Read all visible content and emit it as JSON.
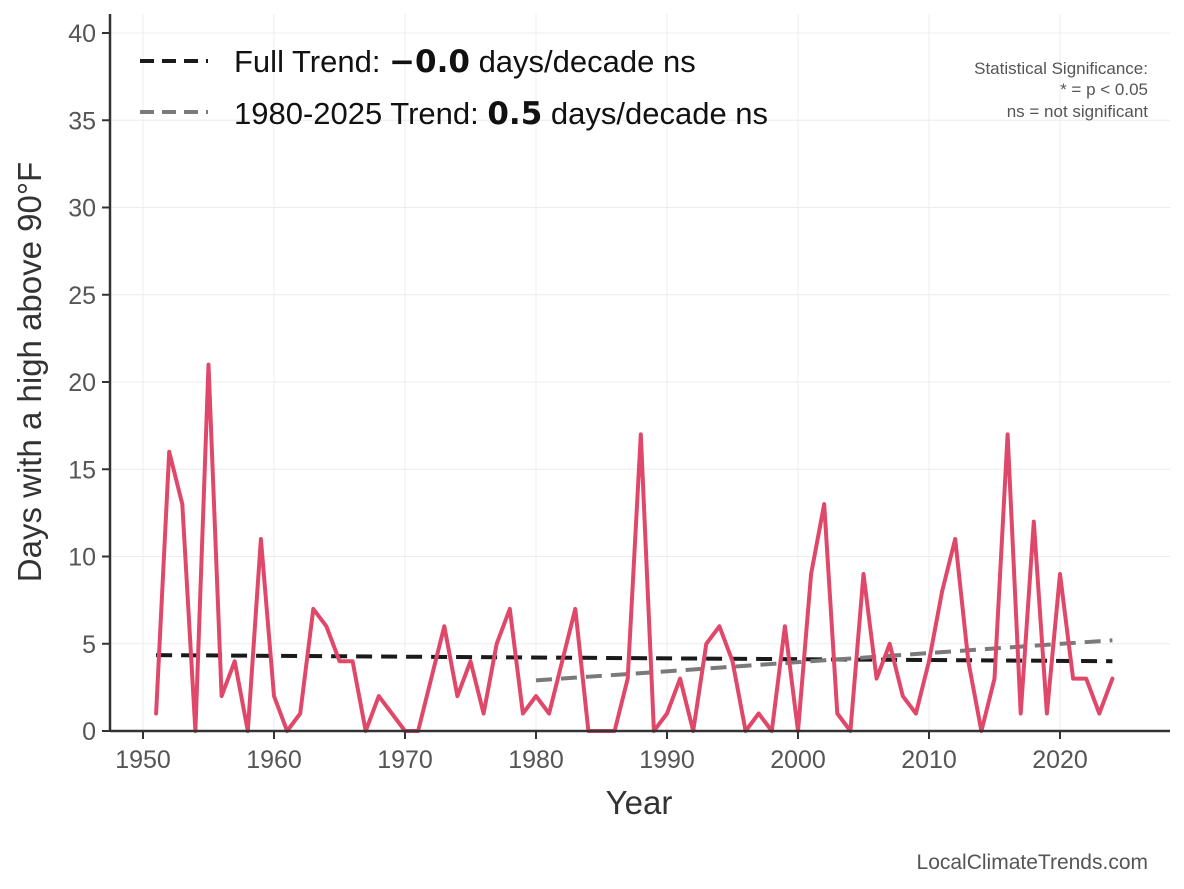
{
  "chart_data": {
    "type": "line",
    "xlabel": "Year",
    "ylabel": "Days with a high above 90°F",
    "xlim": [
      1946,
      2028
    ],
    "ylim": [
      0,
      41
    ],
    "xticks": [
      1950,
      1960,
      1970,
      1980,
      1990,
      2000,
      2010,
      2020
    ],
    "yticks": [
      0,
      5,
      10,
      15,
      20,
      25,
      30,
      35,
      40
    ],
    "grid": true,
    "legend_position": "top-left",
    "series": [
      {
        "color": "#e0486a",
        "x": [
          1951,
          1952,
          1953,
          1954,
          1955,
          1956,
          1957,
          1958,
          1959,
          1960,
          1961,
          1962,
          1963,
          1964,
          1965,
          1966,
          1967,
          1968,
          1969,
          1970,
          1971,
          1972,
          1973,
          1974,
          1975,
          1976,
          1977,
          1978,
          1979,
          1980,
          1981,
          1982,
          1983,
          1984,
          1985,
          1986,
          1987,
          1988,
          1989,
          1990,
          1991,
          1992,
          1993,
          1994,
          1995,
          1996,
          1997,
          1998,
          1999,
          2000,
          2001,
          2002,
          2003,
          2004,
          2005,
          2006,
          2007,
          2008,
          2009,
          2010,
          2011,
          2012,
          2013,
          2014,
          2015,
          2016,
          2017,
          2018,
          2019,
          2020,
          2021,
          2022,
          2023,
          2024
        ],
        "values": [
          1,
          16,
          13,
          0,
          21,
          2,
          4,
          0,
          11,
          2,
          0,
          1,
          7,
          6,
          4,
          4,
          0,
          2,
          1,
          0,
          0,
          3,
          6,
          2,
          4,
          1,
          5,
          7,
          1,
          2,
          1,
          4,
          7,
          0,
          0,
          0,
          3,
          17,
          0,
          1,
          3,
          0,
          5,
          6,
          4,
          0,
          1,
          0,
          6,
          0,
          9,
          13,
          1,
          0,
          9,
          3,
          5,
          2,
          1,
          4,
          8,
          11,
          4,
          0,
          3,
          17,
          1,
          12,
          1,
          9,
          3,
          3,
          1,
          3
        ]
      }
    ],
    "trends": [
      {
        "label_prefix": "Full Trend: ",
        "label_value": "−0.0",
        "label_suffix": " days/decade ns",
        "color": "#1a1a1a",
        "x": [
          1951,
          2024
        ],
        "y": [
          4.35,
          4.0
        ]
      },
      {
        "label_prefix": "1980-2025 Trend: ",
        "label_value": "0.5",
        "label_suffix": " days/decade ns",
        "color": "#7a7a7a",
        "x": [
          1980,
          2024
        ],
        "y": [
          2.9,
          5.2
        ]
      }
    ],
    "significance_note": [
      "Statistical Significance:",
      "* = p < 0.05",
      "ns = not significant"
    ]
  },
  "credit": "LocalClimateTrends.com"
}
